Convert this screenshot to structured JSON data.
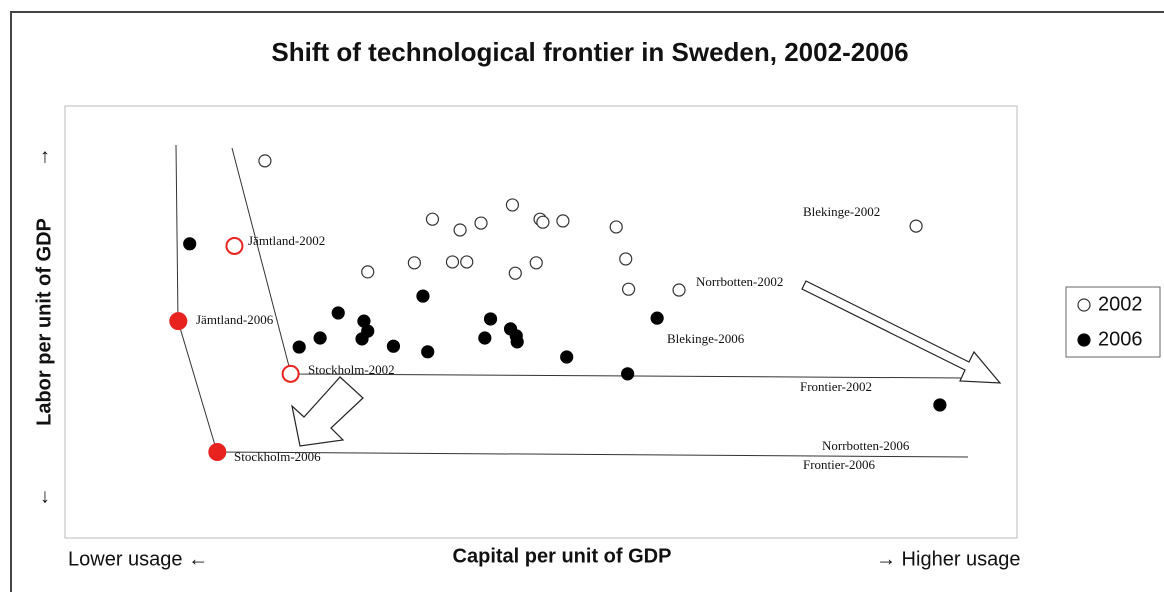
{
  "chart_data": {
    "type": "scatter",
    "title": "Shift of technological frontier in Sweden, 2002-2006",
    "x_label": "Capital per unit of GDP",
    "y_label": "Labor per unit of GDP",
    "x_low": "Lower usage ←",
    "x_high": "→ Higher usage",
    "y_high": "↑",
    "y_low": "↓",
    "xlim": [
      0,
      100
    ],
    "ylim": [
      0,
      100
    ],
    "series": [
      {
        "name": "2002",
        "color": "#333333",
        "filled": false,
        "x": [
          21.0,
          38.6,
          41.5,
          43.7,
          47.0,
          49.9,
          50.2,
          52.3,
          57.9,
          31.8,
          36.7,
          40.7,
          42.2,
          47.3,
          49.5,
          58.9,
          59.2,
          64.5,
          89.4,
          17.8,
          23.7
        ],
        "values": [
          87.3,
          73.8,
          71.3,
          72.9,
          77.1,
          73.8,
          73.1,
          73.4,
          72.0,
          61.6,
          63.7,
          63.9,
          63.9,
          61.3,
          63.7,
          64.6,
          57.6,
          57.4,
          72.2,
          67.6,
          38.0
        ]
      },
      {
        "name": "2006",
        "color": "#000000",
        "filled": true,
        "x": [
          13.1,
          37.6,
          28.7,
          31.4,
          31.8,
          26.8,
          24.6,
          31.2,
          34.5,
          38.1,
          44.7,
          46.8,
          44.1,
          47.4,
          47.5,
          52.7,
          59.1,
          62.2,
          91.9,
          11.9,
          16.0
        ],
        "values": [
          68.1,
          56.0,
          52.1,
          50.2,
          47.9,
          46.3,
          44.2,
          46.1,
          44.4,
          43.1,
          50.7,
          48.4,
          46.3,
          46.8,
          45.4,
          41.9,
          38.0,
          50.9,
          30.8,
          50.2,
          19.9
        ]
      }
    ],
    "highlight_color": "#e8231f",
    "highlight_points": [
      [
        0,
        19
      ],
      [
        0,
        20
      ],
      [
        1,
        19
      ],
      [
        1,
        20
      ]
    ],
    "annotations": [
      "Jämtland-2002",
      "Jämtland-2006",
      "Stockholm-2002",
      "Stockholm-2006",
      "Blekinge-2002",
      "Norrbotten-2002",
      "Blekinge-2006",
      "Norrbotten-2006",
      "Frontier-2002",
      "Frontier-2006"
    ],
    "legend": "right"
  }
}
